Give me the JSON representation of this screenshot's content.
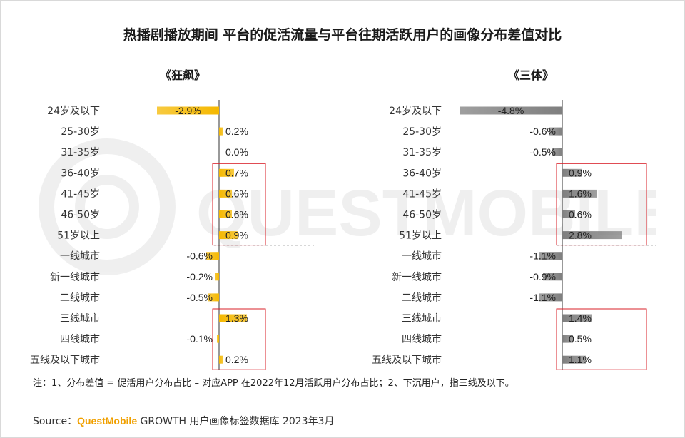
{
  "title": "热播剧播放期间 平台的促活流量与平台往期活跃用户的画像分布差值对比",
  "categories": [
    "24岁及以下",
    "25-30岁",
    "31-35岁",
    "36-40岁",
    "41-45岁",
    "46-50岁",
    "51岁以上",
    "一线城市",
    "新一线城市",
    "二线城市",
    "三线城市",
    "四线城市",
    "五线及以下城市"
  ],
  "watermark": "QUESTMOBILE",
  "chart_data": [
    {
      "type": "bar",
      "orientation": "horizontal",
      "title": "《狂飙》",
      "categories": [
        "24岁及以下",
        "25-30岁",
        "31-35岁",
        "36-40岁",
        "41-45岁",
        "46-50岁",
        "51岁以上",
        "一线城市",
        "新一线城市",
        "二线城市",
        "三线城市",
        "四线城市",
        "五线及以下城市"
      ],
      "values": [
        -2.9,
        0.2,
        0.0,
        0.7,
        0.6,
        0.6,
        0.9,
        -0.6,
        -0.2,
        -0.5,
        1.3,
        -0.1,
        0.2
      ],
      "labels": [
        "-2.9%",
        "0.2%",
        "0.0%",
        "0.7%",
        "0.6%",
        "0.6%",
        "0.9%",
        "-0.6%",
        "-0.2%",
        "-0.5%",
        "1.3%",
        "-0.1%",
        "0.2%"
      ],
      "color": "#f5b800",
      "highlight_groups": [
        [
          3,
          6
        ],
        [
          10,
          12
        ]
      ]
    },
    {
      "type": "bar",
      "orientation": "horizontal",
      "title": "《三体》",
      "categories": [
        "24岁及以下",
        "25-30岁",
        "31-35岁",
        "36-40岁",
        "41-45岁",
        "46-50岁",
        "51岁以上",
        "一线城市",
        "新一线城市",
        "二线城市",
        "三线城市",
        "四线城市",
        "五线及以下城市"
      ],
      "values": [
        -4.8,
        -0.6,
        -0.5,
        0.9,
        1.6,
        0.6,
        2.8,
        -1.1,
        -0.9,
        -1.1,
        1.4,
        0.5,
        1.1
      ],
      "labels": [
        "-4.8%",
        "-0.6%",
        "-0.5%",
        "0.9%",
        "1.6%",
        "0.6%",
        "2.8%",
        "-1.1%",
        "-0.9%",
        "-1.1%",
        "1.4%",
        "0.5%",
        "1.1%"
      ],
      "color": "#7f7f7f",
      "highlight_groups": [
        [
          3,
          6
        ],
        [
          10,
          12
        ]
      ]
    }
  ],
  "note": "注：1、分布差值 = 促活用户分布占比 – 对应APP 在2022年12月活跃用户分布占比；2、下沉用户，指三线及以下。",
  "source_prefix": "Source：",
  "source_brand": "QuestMobile",
  "source_suffix": " GROWTH 用户画像标签数据库 2023年3月",
  "colors": {
    "highlight_box": "#d9202a",
    "divider": "#bfbfbf",
    "axis": "#333333"
  }
}
